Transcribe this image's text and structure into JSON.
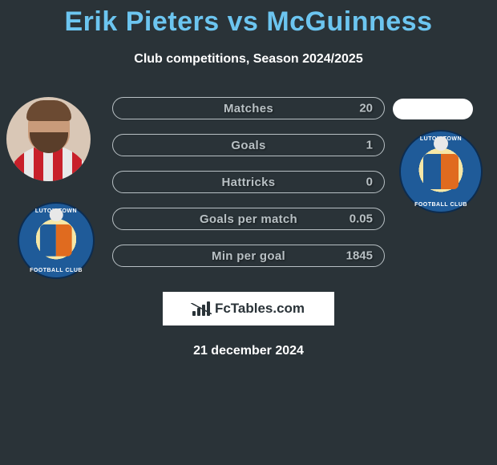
{
  "title": "Erik Pieters vs McGuinness",
  "title_color": "#6cc5f0",
  "subtitle": "Club competitions, Season 2024/2025",
  "background_color": "#2a3338",
  "stats_area": {
    "type": "infographic",
    "pill_border_color": "#b8c0c4",
    "text_color": "#b8c0c4",
    "font_weight": 800,
    "rows": [
      {
        "label": "Matches",
        "right_value": "20"
      },
      {
        "label": "Goals",
        "right_value": "1"
      },
      {
        "label": "Hattricks",
        "right_value": "0"
      },
      {
        "label": "Goals per match",
        "right_value": "0.05"
      },
      {
        "label": "Min per goal",
        "right_value": "1845"
      }
    ]
  },
  "left_player": {
    "club_badge_text_top": "LUTON TOWN",
    "club_badge_text_bottom": "FOOTBALL CLUB",
    "badge_primary": "#1f5b99",
    "badge_accent": "#e06b1f",
    "badge_inner": "#f6e7a6",
    "kit_stripes": [
      "#e8e8e8",
      "#c8202a"
    ]
  },
  "right_player": {
    "club_badge_text_top": "LUTON TOWN",
    "club_badge_text_bottom": "FOOTBALL CLUB",
    "badge_primary": "#1f5b99",
    "badge_accent": "#e06b1f",
    "badge_inner": "#f6e7a6",
    "avatar_pill_color": "#ffffff"
  },
  "brand": {
    "text": "FcTables.com",
    "box_bg": "#ffffff",
    "fg": "#2a3338"
  },
  "date_text": "21 december 2024"
}
